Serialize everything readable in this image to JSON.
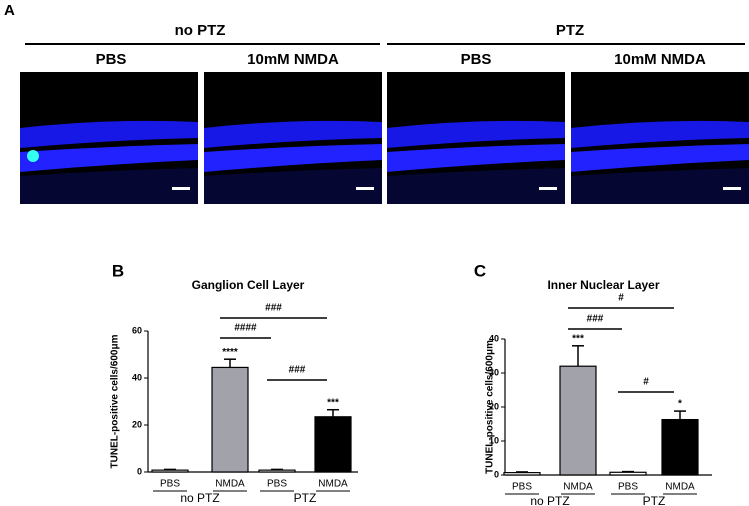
{
  "panel_a": {
    "letter": "A",
    "groups": [
      {
        "label": "no PTZ",
        "panels": [
          "PBS",
          "10mM NMDA"
        ]
      },
      {
        "label": "PTZ",
        "panels": [
          "PBS",
          "10mM NMDA"
        ]
      }
    ]
  },
  "chart_data": [
    {
      "type": "bar",
      "letter": "B",
      "title": "Ganglion Cell Layer",
      "ylabel": "TUNEL-positive cells/600μm",
      "categories": [
        "PBS",
        "NMDA",
        "PBS",
        "NMDA"
      ],
      "groups": [
        "no PTZ",
        "PTZ"
      ],
      "values": [
        0.8,
        44.5,
        0.8,
        23.5
      ],
      "errors": [
        0.3,
        3.5,
        0.3,
        3.0
      ],
      "colors": [
        "#ffffff",
        "#a2a2aa",
        "#ffffff",
        "#000000"
      ],
      "significance": [
        null,
        "****",
        null,
        "***"
      ],
      "annotations": [
        {
          "text": "###",
          "from": 1,
          "to": 3
        },
        {
          "text": "####",
          "from": 1,
          "to": 2
        },
        {
          "text": "###",
          "from": 2,
          "to": 3
        }
      ],
      "ylim": [
        0,
        60
      ],
      "yticks": [
        0,
        20,
        40,
        60
      ]
    },
    {
      "type": "bar",
      "letter": "C",
      "title": "Inner Nuclear Layer",
      "ylabel": "TUNEL-positive cells/600μm",
      "categories": [
        "PBS",
        "NMDA",
        "PBS",
        "NMDA"
      ],
      "groups": [
        "no PTZ",
        "PTZ"
      ],
      "values": [
        0.7,
        32,
        0.8,
        16.3
      ],
      "errors": [
        0.2,
        6,
        0.2,
        2.5
      ],
      "colors": [
        "#ffffff",
        "#a2a2aa",
        "#ffffff",
        "#000000"
      ],
      "significance": [
        null,
        "***",
        null,
        "*"
      ],
      "annotations": [
        {
          "text": "#",
          "from": 1,
          "to": 3
        },
        {
          "text": "###",
          "from": 1,
          "to": 2
        },
        {
          "text": "#",
          "from": 2,
          "to": 3
        }
      ],
      "ylim": [
        0,
        40
      ],
      "yticks": [
        0,
        10,
        20,
        30,
        40
      ]
    }
  ]
}
